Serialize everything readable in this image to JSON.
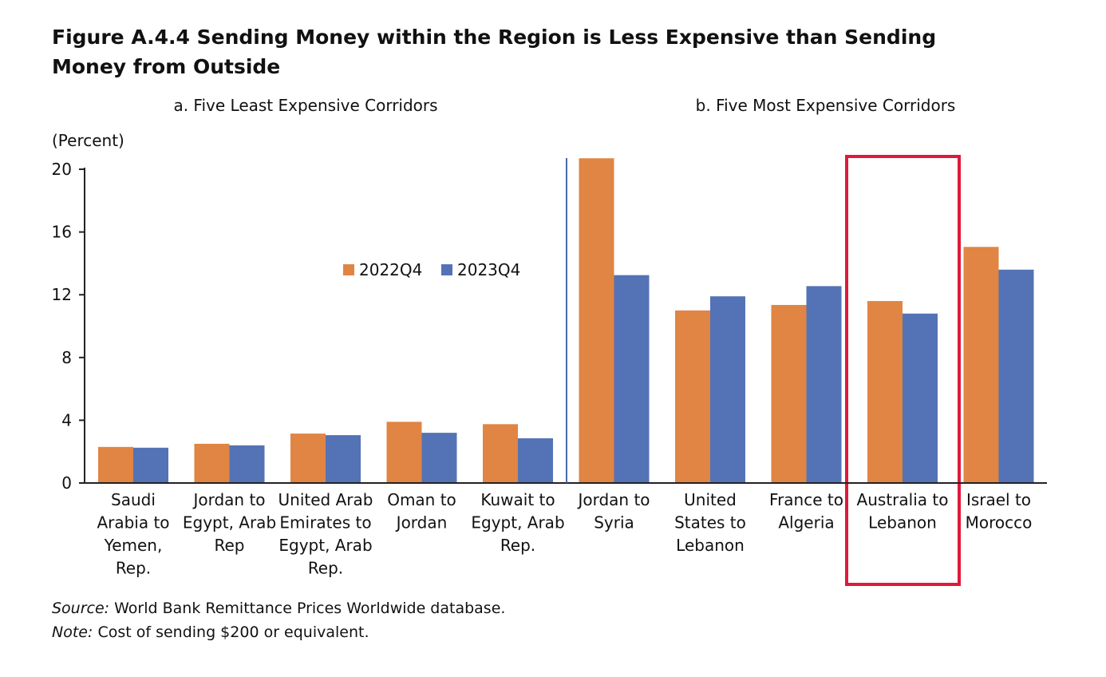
{
  "figure": {
    "title": "Figure A.4.4 Sending Money within the Region is Less Expensive than Sending Money from Outside",
    "source_label": "Source:",
    "source_text": "World Bank Remittance Prices Worldwide database.",
    "note_label": "Note:",
    "note_text": "Cost of sending $200 or equivalent."
  },
  "chart_data": {
    "type": "bar",
    "ylabel": "(Percent)",
    "ylim": [
      0,
      20
    ],
    "yticks": [
      0,
      4,
      8,
      12,
      16,
      20
    ],
    "panels": [
      {
        "label": "a. Five Least Expensive Corridors",
        "category_indices": [
          0,
          1,
          2,
          3,
          4
        ]
      },
      {
        "label": "b. Five Most Expensive Corridors",
        "category_indices": [
          5,
          6,
          7,
          8,
          9
        ]
      }
    ],
    "categories": [
      [
        "Saudi",
        "Arabia to",
        "Yemen,",
        "Rep."
      ],
      [
        "Jordan to",
        "Egypt, Arab",
        "Rep"
      ],
      [
        "United Arab",
        "Emirates to",
        "Egypt, Arab",
        "Rep."
      ],
      [
        "Oman to",
        "Jordan"
      ],
      [
        "Kuwait to",
        "Egypt, Arab",
        "Rep."
      ],
      [
        "Jordan to",
        "Syria"
      ],
      [
        "United",
        "States to",
        "Lebanon"
      ],
      [
        "France to",
        "Algeria"
      ],
      [
        "Australia to",
        "Lebanon"
      ],
      [
        "Israel to",
        "Morocco"
      ]
    ],
    "series": [
      {
        "name": "2022Q4",
        "color": "#E08543",
        "values": [
          2.3,
          2.5,
          3.15,
          3.9,
          3.75,
          20.7,
          11.0,
          11.35,
          11.6,
          15.05
        ]
      },
      {
        "name": "2023Q4",
        "color": "#5373B6",
        "values": [
          2.25,
          2.4,
          3.05,
          3.2,
          2.85,
          13.25,
          11.9,
          12.55,
          10.8,
          13.6
        ]
      }
    ],
    "legend_position": "inside-top-center (left panel)",
    "highlight": {
      "category_index": 8,
      "color": "#E0193A"
    },
    "grid": false
  }
}
